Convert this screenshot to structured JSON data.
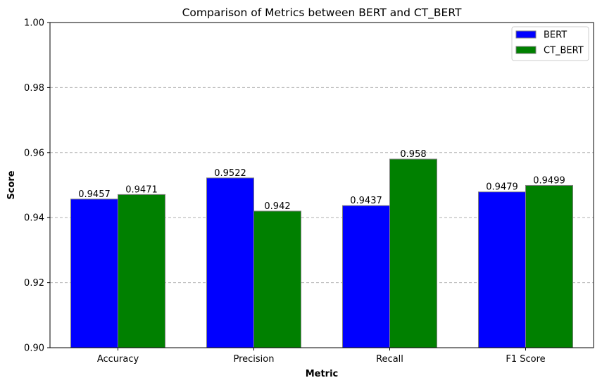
{
  "chart_data": {
    "type": "bar",
    "title": "Comparison of Metrics between BERT and CT_BERT",
    "xlabel": "Metric",
    "ylabel": "Score",
    "categories": [
      "Accuracy",
      "Precision",
      "Recall",
      "F1 Score"
    ],
    "series": [
      {
        "name": "BERT",
        "values": [
          0.9457,
          0.9522,
          0.9437,
          0.9479
        ],
        "labels": [
          "0.9457",
          "0.9522",
          "0.9437",
          "0.9479"
        ],
        "color": "#0000ff"
      },
      {
        "name": "CT_BERT",
        "values": [
          0.9471,
          0.942,
          0.958,
          0.9499
        ],
        "labels": [
          "0.9471",
          "0.942",
          "0.958",
          "0.9499"
        ],
        "color": "#008000"
      }
    ],
    "ylim": [
      0.9,
      1.0
    ],
    "yticks": [
      0.9,
      0.92,
      0.94,
      0.96,
      0.98,
      1.0
    ],
    "ytick_labels": [
      "0.90",
      "0.92",
      "0.94",
      "0.96",
      "0.98",
      "1.00"
    ],
    "grid": "y-dashed",
    "legend_position": "top-right"
  }
}
